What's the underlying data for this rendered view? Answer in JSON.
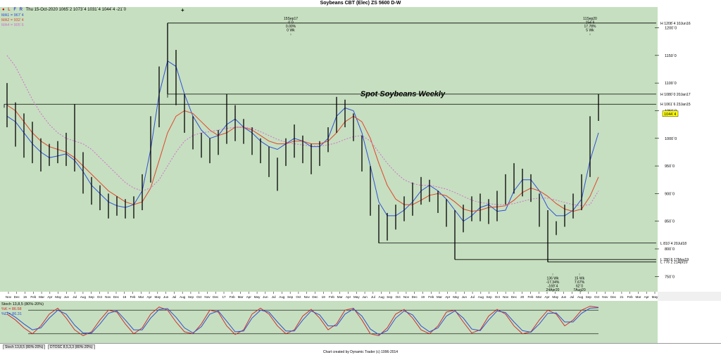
{
  "window": {
    "title": "Soybeans CBT (Elec) ZS 5600 D-W"
  },
  "toolbar": {
    "icons": [
      "L",
      "F",
      "R"
    ],
    "quote": "Thu 15-Oct-2020   1065`2  1073`4  1031`4  1044`4  -21`0",
    "plus": "+"
  },
  "legend": {
    "ma1": "MA1 = 967`4",
    "ma2": "MA2 = 932`4",
    "ma4": "MA4 = 905`6"
  },
  "osc_legend": {
    "title": "Stoch 13,8,5 (80%-20%)",
    "k": "%K = 86.58",
    "d": "%D = 86.31"
  },
  "tabs": [
    "Stoch 13,8,5 (80%-20%)",
    "DTOSC 8,5,3,3 (80%-20%)"
  ],
  "footer": "Chart created by Dynamic Trader  (c) 1996-2014",
  "colors": {
    "plot_bg": "#c6dfc0",
    "price": "#000000",
    "ma1": "#2f4fd8",
    "ma2": "#e0452b",
    "ma4": "#d070d0",
    "k": "#d03030",
    "d": "#3050d0"
  },
  "chart_data": {
    "type": "bar",
    "title": "Spot Soybeans Weekly",
    "y_ticks": [
      "1200`0",
      "1150`0",
      "1100`0",
      "1050`0",
      "1000`0",
      "950`0",
      "900`0",
      "850`0",
      "800`0",
      "750`0"
    ],
    "y_tick_values": [
      1200,
      1150,
      1100,
      1050,
      1000,
      950,
      900,
      850,
      800,
      750
    ],
    "ylim": [
      725,
      1235
    ],
    "current_price_label": "1044`4",
    "current_price": 1044.5,
    "x_ticks": [
      "Nov",
      "Dec",
      "15",
      "Feb",
      "Mar",
      "Apr",
      "May",
      "Jun",
      "Jul",
      "Aug",
      "Sep",
      "Oct",
      "Nov",
      "Dec",
      "16",
      "Feb",
      "Mar",
      "Apr",
      "May",
      "Jun",
      "Jul",
      "Aug",
      "Sep",
      "Oct",
      "Nov",
      "Dec",
      "17",
      "Feb",
      "Mar",
      "Apr",
      "May",
      "Jun",
      "Jul",
      "Aug",
      "Sep",
      "Oct",
      "Nov",
      "Dec",
      "18",
      "Feb",
      "Mar",
      "Apr",
      "May",
      "Jun",
      "Jul",
      "Aug",
      "Sep",
      "Oct",
      "Nov",
      "Dec",
      "19",
      "Feb",
      "Mar",
      "Apr",
      "May",
      "Jun",
      "Jul",
      "Aug",
      "Sep",
      "Oct",
      "Nov",
      "Dec",
      "20",
      "Feb",
      "Mar",
      "Apr",
      "May",
      "Jun",
      "Jul",
      "Aug",
      "Sep",
      "Oct",
      "Nov",
      "Dec",
      "21",
      "Feb",
      "Mar",
      "Apr",
      "May"
    ],
    "pivot_lines": [
      {
        "label": "H 1208`4 10Jun16",
        "value": 1208.5
      },
      {
        "label": "H 1080`0 20Jan17",
        "value": 1080
      },
      {
        "label": "H 1061`6 23Jan15",
        "value": 1061.75
      },
      {
        "label": "L 810`4 20Jul18",
        "value": 810.5
      },
      {
        "label": "L 780`6 17May19",
        "value": 780.75
      },
      {
        "label": "L 776`2 21Apr20",
        "value": 776.25
      }
    ],
    "annotations": {
      "top_left": [
        "15Sep17",
        "0`0",
        "0.00%",
        "0 Wk",
        "↓"
      ],
      "top_right": [
        "11Sep20",
        "154`6",
        "17.78%",
        "5 Wk",
        "↓"
      ],
      "bottom_left": [
        "↑",
        "136 Wk",
        "-17.34%",
        "-169`4",
        "24Apr20"
      ],
      "bottom_right": [
        "↑",
        "15 Wk",
        "7.67%",
        "62`0",
        "7Aug20"
      ]
    },
    "series": [
      {
        "name": "MA1",
        "values": [
          1040,
          1030,
          1010,
          990,
          975,
          965,
          968,
          972,
          960,
          940,
          915,
          900,
          885,
          878,
          875,
          880,
          905,
          980,
          1080,
          1140,
          1130,
          1080,
          1040,
          1015,
          1000,
          1005,
          1025,
          1035,
          1020,
          1010,
          995,
          985,
          980,
          990,
          1000,
          995,
          985,
          985,
          1000,
          1040,
          1055,
          1050,
          1010,
          950,
          885,
          860,
          860,
          870,
          885,
          905,
          915,
          905,
          890,
          870,
          850,
          860,
          875,
          880,
          868,
          870,
          905,
          925,
          925,
          905,
          875,
          860,
          860,
          870,
          890,
          960,
          1010
        ]
      },
      {
        "name": "MA2",
        "values": [
          1060,
          1050,
          1030,
          1010,
          995,
          985,
          980,
          975,
          965,
          950,
          935,
          920,
          905,
          895,
          885,
          880,
          885,
          910,
          960,
          1010,
          1040,
          1050,
          1045,
          1030,
          1015,
          1005,
          1010,
          1020,
          1020,
          1015,
          1005,
          995,
          990,
          990,
          995,
          995,
          990,
          990,
          995,
          1010,
          1030,
          1040,
          1030,
          1000,
          955,
          915,
          890,
          880,
          880,
          888,
          897,
          900,
          896,
          885,
          872,
          868,
          870,
          875,
          876,
          878,
          888,
          902,
          910,
          905,
          895,
          882,
          872,
          868,
          872,
          895,
          930
        ]
      },
      {
        "name": "MA4",
        "values": [
          1150,
          1130,
          1100,
          1070,
          1045,
          1025,
          1010,
          1000,
          995,
          990,
          980,
          965,
          950,
          935,
          920,
          910,
          905,
          910,
          925,
          950,
          975,
          995,
          1005,
          1010,
          1012,
          1015,
          1018,
          1020,
          1020,
          1018,
          1012,
          1005,
          998,
          993,
          990,
          988,
          986,
          986,
          988,
          992,
          998,
          1003,
          1005,
          995,
          975,
          955,
          938,
          925,
          918,
          915,
          915,
          912,
          908,
          902,
          895,
          888,
          884,
          882,
          880,
          880,
          882,
          886,
          890,
          892,
          892,
          888,
          884,
          880,
          878,
          880,
          905
        ]
      }
    ],
    "price_bars": [
      {
        "h": 1100,
        "l": 1020
      },
      {
        "h": 1065,
        "l": 985
      },
      {
        "h": 1045,
        "l": 965
      },
      {
        "h": 1030,
        "l": 955
      },
      {
        "h": 1000,
        "l": 940
      },
      {
        "h": 990,
        "l": 950
      },
      {
        "h": 995,
        "l": 955
      },
      {
        "h": 1010,
        "l": 950
      },
      {
        "h": 1062,
        "l": 940
      },
      {
        "h": 975,
        "l": 900
      },
      {
        "h": 930,
        "l": 880
      },
      {
        "h": 915,
        "l": 870
      },
      {
        "h": 900,
        "l": 855
      },
      {
        "h": 895,
        "l": 860
      },
      {
        "h": 890,
        "l": 855
      },
      {
        "h": 895,
        "l": 855
      },
      {
        "h": 935,
        "l": 870
      },
      {
        "h": 1040,
        "l": 920
      },
      {
        "h": 1130,
        "l": 1020
      },
      {
        "h": 1208.5,
        "l": 1080
      },
      {
        "h": 1160,
        "l": 1060
      },
      {
        "h": 1080,
        "l": 1010
      },
      {
        "h": 1040,
        "l": 980
      },
      {
        "h": 1010,
        "l": 965
      },
      {
        "h": 1000,
        "l": 955
      },
      {
        "h": 1015,
        "l": 970
      },
      {
        "h": 1080,
        "l": 990
      },
      {
        "h": 1060,
        "l": 995
      },
      {
        "h": 1035,
        "l": 990
      },
      {
        "h": 1020,
        "l": 970
      },
      {
        "h": 1000,
        "l": 955
      },
      {
        "h": 985,
        "l": 930
      },
      {
        "h": 965,
        "l": 905
      },
      {
        "h": 1000,
        "l": 950
      },
      {
        "h": 1025,
        "l": 965
      },
      {
        "h": 1005,
        "l": 955
      },
      {
        "h": 990,
        "l": 935
      },
      {
        "h": 995,
        "l": 950
      },
      {
        "h": 1020,
        "l": 975
      },
      {
        "h": 1075,
        "l": 1010
      },
      {
        "h": 1070,
        "l": 1020
      },
      {
        "h": 1045,
        "l": 995
      },
      {
        "h": 1005,
        "l": 940
      },
      {
        "h": 950,
        "l": 860
      },
      {
        "h": 880,
        "l": 810.5
      },
      {
        "h": 865,
        "l": 815
      },
      {
        "h": 880,
        "l": 835
      },
      {
        "h": 895,
        "l": 850
      },
      {
        "h": 920,
        "l": 860
      },
      {
        "h": 930,
        "l": 880
      },
      {
        "h": 925,
        "l": 885
      },
      {
        "h": 905,
        "l": 865
      },
      {
        "h": 890,
        "l": 840
      },
      {
        "h": 870,
        "l": 780.75
      },
      {
        "h": 880,
        "l": 830
      },
      {
        "h": 895,
        "l": 850
      },
      {
        "h": 900,
        "l": 850
      },
      {
        "h": 890,
        "l": 845
      },
      {
        "h": 905,
        "l": 850
      },
      {
        "h": 935,
        "l": 880
      },
      {
        "h": 955,
        "l": 900
      },
      {
        "h": 945,
        "l": 895
      },
      {
        "h": 935,
        "l": 885
      },
      {
        "h": 900,
        "l": 840
      },
      {
        "h": 870,
        "l": 776.25
      },
      {
        "h": 850,
        "l": 825
      },
      {
        "h": 880,
        "l": 840
      },
      {
        "h": 900,
        "l": 855
      },
      {
        "h": 935,
        "l": 870
      },
      {
        "h": 1040,
        "l": 930
      },
      {
        "h": 1080,
        "l": 1031.5
      }
    ],
    "stoch": {
      "ylim": [
        0,
        100
      ],
      "levels": [
        80,
        20
      ],
      "k": [
        70,
        55,
        35,
        20,
        40,
        70,
        85,
        60,
        30,
        15,
        25,
        55,
        80,
        75,
        45,
        20,
        35,
        70,
        88,
        80,
        50,
        25,
        20,
        45,
        80,
        75,
        40,
        18,
        30,
        70,
        85,
        70,
        40,
        20,
        30,
        65,
        82,
        60,
        30,
        45,
        80,
        85,
        55,
        20,
        15,
        35,
        70,
        82,
        60,
        30,
        20,
        40,
        75,
        80,
        50,
        22,
        30,
        65,
        82,
        70,
        40,
        20,
        25,
        55,
        80,
        70,
        40,
        55,
        80,
        90,
        87
      ],
      "d": [
        75,
        62,
        45,
        30,
        35,
        60,
        80,
        70,
        42,
        22,
        22,
        45,
        72,
        78,
        55,
        30,
        30,
        60,
        82,
        84,
        62,
        35,
        22,
        38,
        70,
        78,
        52,
        25,
        27,
        60,
        80,
        75,
        50,
        27,
        27,
        55,
        78,
        68,
        40,
        40,
        70,
        83,
        65,
        32,
        18,
        28,
        60,
        78,
        68,
        40,
        25,
        35,
        65,
        78,
        60,
        32,
        28,
        55,
        78,
        74,
        50,
        28,
        24,
        45,
        72,
        73,
        50,
        50,
        72,
        85,
        86
      ]
    }
  }
}
